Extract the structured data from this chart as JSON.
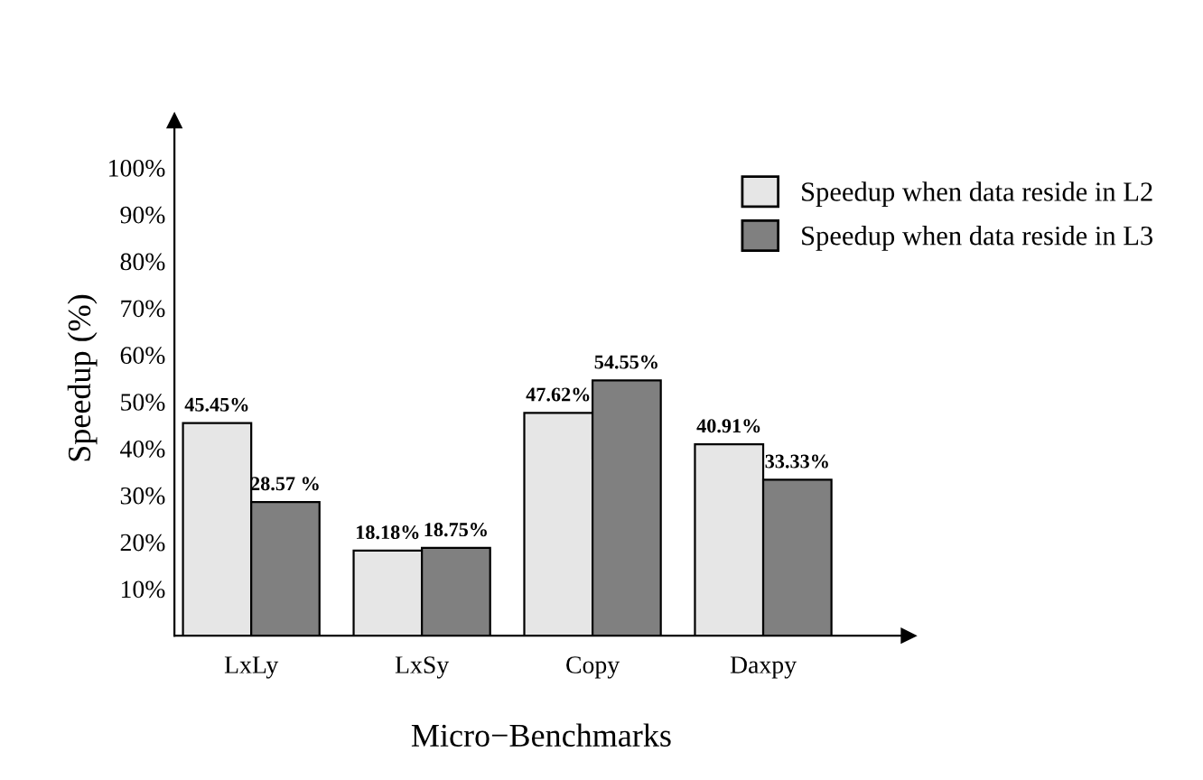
{
  "chart_data": {
    "type": "bar",
    "xlabel": "Micro−Benchmarks",
    "ylabel": "Speedup (%)",
    "categories": [
      "LxLy",
      "LxSy",
      "Copy",
      "Daxpy"
    ],
    "series": [
      {
        "name": "Speedup when data reside in L2",
        "color": "#e6e6e6",
        "values": [
          45.45,
          18.18,
          47.62,
          40.91
        ],
        "value_labels": [
          "45.45%",
          "18.18%",
          "47.62%",
          "40.91%"
        ]
      },
      {
        "name": "Speedup when data reside in L3",
        "color": "#808080",
        "values": [
          28.57,
          18.75,
          54.55,
          33.33
        ],
        "value_labels": [
          "28.57 %",
          "18.75%",
          "54.55%",
          "33.33%"
        ]
      }
    ],
    "ylim": [
      0,
      110
    ],
    "yticks": [
      {
        "value": 10,
        "label": "10%"
      },
      {
        "value": 20,
        "label": "20%"
      },
      {
        "value": 30,
        "label": "30%"
      },
      {
        "value": 40,
        "label": "40%"
      },
      {
        "value": 50,
        "label": "50%"
      },
      {
        "value": 60,
        "label": "60%"
      },
      {
        "value": 70,
        "label": "70%"
      },
      {
        "value": 80,
        "label": "80%"
      },
      {
        "value": 90,
        "label": "90%"
      },
      {
        "value": 100,
        "label": "100%"
      }
    ],
    "grid": false,
    "legend": "top right"
  }
}
